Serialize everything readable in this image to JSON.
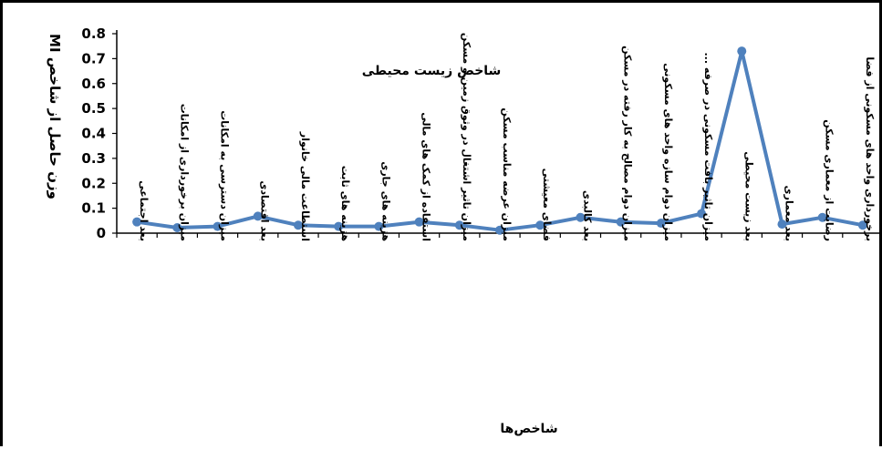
{
  "chart_data": {
    "type": "line",
    "title": "شاخص زیست محیطی",
    "xlabel": "شاخص‌ها",
    "ylabel": "وزن حاصل از شاخص MI",
    "ylim": [
      0,
      0.8
    ],
    "yticks": [
      "0",
      "0.1",
      "0.2",
      "0.3",
      "0.4",
      "0.5",
      "0.6",
      "0.7",
      "0.8"
    ],
    "grid": false,
    "color": "#4f81bd",
    "categories": [
      "بعد اجتماعی",
      "میزان برخورداری از امکانات",
      "میزان دسترسی به امکانات",
      "بعد اقتصادی",
      "استطاعت مالی خانوار",
      "هزینه های ثابت",
      "هزینه های جاری",
      "استفاده از کمک های مالی",
      "میزان تاثیر اشتغال در وثوق زمین و مسکن",
      "میزان عرضه مناسب مسکن",
      "فضای معیشتی",
      "بعد کالبدی",
      "میزان دوام مصالح به کار رفته در مسکن",
      "میزان دوام سازه واحد های مسکونی",
      "میزان تاثیر بافت مسکونی در صرفه ...",
      "بعد زیست محیطی",
      "بعد معماری",
      "رضایت از معماری مسکن",
      "برخورداری واحد های مسکونی از فضا"
    ],
    "values": [
      0.045,
      0.022,
      0.027,
      0.068,
      0.032,
      0.027,
      0.027,
      0.045,
      0.032,
      0.012,
      0.032,
      0.063,
      0.045,
      0.04,
      0.078,
      0.73,
      0.036,
      0.063,
      0.032
    ]
  }
}
